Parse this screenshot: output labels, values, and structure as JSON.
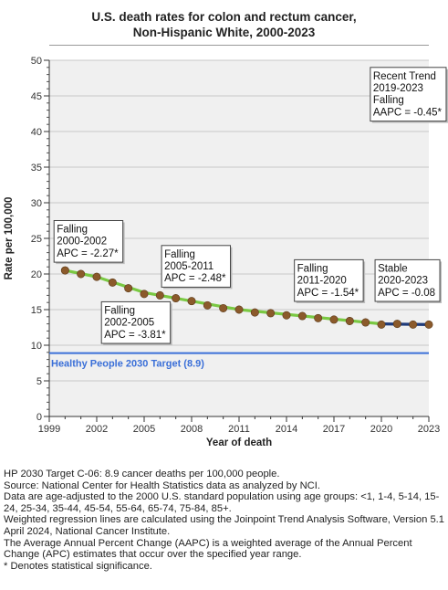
{
  "chart_data": {
    "type": "line",
    "title_line1": "U.S. death rates for colon and rectum cancer,",
    "title_line2": "Non-Hispanic White,  2000-2023",
    "xlabel": "Year of death",
    "ylabel": "Rate per 100,000",
    "xlim": [
      1999,
      2023
    ],
    "ylim": [
      0,
      50
    ],
    "x_ticks": [
      1999,
      2002,
      2005,
      2008,
      2011,
      2014,
      2017,
      2020,
      2023
    ],
    "y_ticks": [
      0,
      5,
      10,
      15,
      20,
      25,
      30,
      35,
      40,
      45,
      50
    ],
    "grid": true,
    "x": [
      2000,
      2001,
      2002,
      2003,
      2004,
      2005,
      2006,
      2007,
      2008,
      2009,
      2010,
      2011,
      2012,
      2013,
      2014,
      2015,
      2016,
      2017,
      2018,
      2019,
      2020,
      2021,
      2022,
      2023
    ],
    "observed": [
      20.5,
      20.0,
      19.6,
      18.8,
      18.0,
      17.2,
      17.0,
      16.6,
      16.2,
      15.6,
      15.2,
      15.0,
      14.6,
      14.5,
      14.2,
      14.1,
      13.8,
      13.6,
      13.4,
      13.2,
      12.9,
      13.0,
      12.9,
      12.9
    ],
    "trend_segments": [
      {
        "x": [
          2000,
          2002
        ],
        "y": [
          20.5,
          19.6
        ],
        "color": "#7ac943"
      },
      {
        "x": [
          2002,
          2005
        ],
        "y": [
          19.6,
          17.4
        ],
        "color": "#7ac943"
      },
      {
        "x": [
          2005,
          2011
        ],
        "y": [
          17.4,
          15.0
        ],
        "color": "#7ac943"
      },
      {
        "x": [
          2011,
          2020
        ],
        "y": [
          15.0,
          13.0
        ],
        "color": "#7ac943"
      },
      {
        "x": [
          2020,
          2023
        ],
        "y": [
          13.0,
          12.9
        ],
        "color": "#1f3b7a"
      }
    ],
    "target": {
      "value": 8.9,
      "label": "Healthy People 2030 Target (8.9)",
      "color": "#3a6fd8"
    },
    "marker_color": "#8b5a2b",
    "annotations": [
      {
        "lines": [
          "Falling",
          "2000-2002",
          "APC = -2.27*"
        ],
        "anchor_x": 1999.3,
        "anchor_y": 27.5
      },
      {
        "lines": [
          "Falling",
          "2002-2005",
          "APC = -3.81*"
        ],
        "anchor_x": 2002.3,
        "anchor_y": 16.1
      },
      {
        "lines": [
          "Falling",
          "2005-2011",
          "APC = -2.48*"
        ],
        "anchor_x": 2006.1,
        "anchor_y": 24.0
      },
      {
        "lines": [
          "Falling",
          "2011-2020",
          "APC = -1.54*"
        ],
        "anchor_x": 2014.5,
        "anchor_y": 22.0
      },
      {
        "lines": [
          "Stable",
          "2020-2023",
          "APC = -0.08"
        ],
        "anchor_x": 2019.6,
        "anchor_y": 22.0
      },
      {
        "lines": [
          "Recent Trend",
          "2019-2023",
          "Falling",
          "AAPC = -0.45*"
        ],
        "anchor_x": 2019.3,
        "anchor_y": 49.0
      }
    ]
  },
  "footnotes": [
    "HP 2030 Target C-06: 8.9 cancer deaths per 100,000 people.",
    "Source: National Center for Health Statistics data as analyzed by NCI.",
    "Data are age-adjusted to the 2000 U.S. standard population using age groups: <1, 1-4, 5-14, 15-24, 25-34, 35-44, 45-54, 55-64, 65-74, 75-84, 85+.",
    "Weighted regression lines are calculated using the Joinpoint Trend Analysis Software, Version 5.1 April 2024, National Cancer Institute.",
    "The Average Annual Percent Change (AAPC) is a weighted average of the Annual Percent Change (APC) estimates that occur over the specified year range.",
    "* Denotes statistical significance."
  ]
}
